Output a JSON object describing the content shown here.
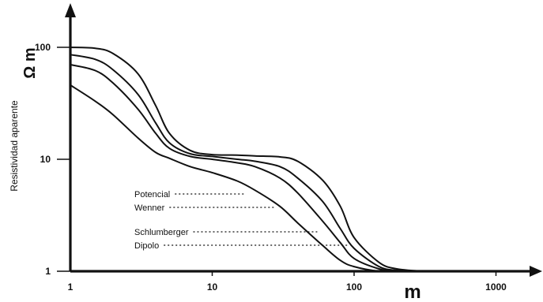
{
  "chart_data": {
    "type": "line",
    "xscale": "log",
    "yscale": "log",
    "xlim": [
      1,
      1000
    ],
    "ylim": [
      1,
      100
    ],
    "x_ticks": [
      "1",
      "10",
      "100",
      "1000"
    ],
    "y_ticks": [
      "1",
      "10",
      "100"
    ],
    "xlabel": "m",
    "ylabel": "Resistividad aparente",
    "y_unit": "Ω m",
    "series": [
      {
        "name": "Potencial",
        "x": [
          1,
          1.5,
          2,
          3,
          4,
          5,
          7,
          10,
          15,
          20,
          30,
          40,
          60,
          80,
          100,
          150,
          200,
          300
        ],
        "y": [
          100,
          98,
          88,
          58,
          30,
          17,
          12,
          11,
          10.9,
          10.7,
          10.5,
          9.6,
          6.5,
          3.8,
          2.0,
          1.2,
          1.05,
          1.0
        ]
      },
      {
        "name": "Wenner",
        "x": [
          1,
          1.5,
          2,
          3,
          4,
          5,
          7,
          10,
          15,
          20,
          30,
          40,
          60,
          80,
          100,
          150,
          200,
          300
        ],
        "y": [
          86,
          78,
          63,
          38,
          21,
          14,
          11.2,
          10.6,
          10,
          9.6,
          8.6,
          6.8,
          4.2,
          2.4,
          1.6,
          1.1,
          1.02,
          1.0
        ]
      },
      {
        "name": "Schlumberger",
        "x": [
          1,
          1.5,
          2,
          3,
          4,
          5,
          7,
          10,
          15,
          20,
          30,
          40,
          60,
          80,
          100,
          150,
          200,
          300
        ],
        "y": [
          70,
          62,
          48,
          28,
          17,
          12.5,
          10.6,
          10,
          9.3,
          8.6,
          6.8,
          5.0,
          2.8,
          1.8,
          1.3,
          1.05,
          1.0,
          1.0
        ]
      },
      {
        "name": "Dipolo",
        "x": [
          1,
          1.5,
          2,
          3,
          4,
          5,
          7,
          10,
          15,
          20,
          30,
          40,
          60,
          80,
          100,
          150,
          200
        ],
        "y": [
          46,
          33,
          25,
          15.5,
          11.5,
          10.2,
          8.6,
          7.6,
          6.4,
          5.3,
          3.8,
          2.7,
          1.7,
          1.25,
          1.1,
          1.0,
          1.0
        ]
      }
    ],
    "annotations": [
      {
        "text": "Potencial",
        "x": 17
      },
      {
        "text": "Wenner",
        "x": 28
      },
      {
        "text": "Schlumberger",
        "x": 55
      },
      {
        "text": "Dipolo",
        "x": 90
      }
    ]
  }
}
